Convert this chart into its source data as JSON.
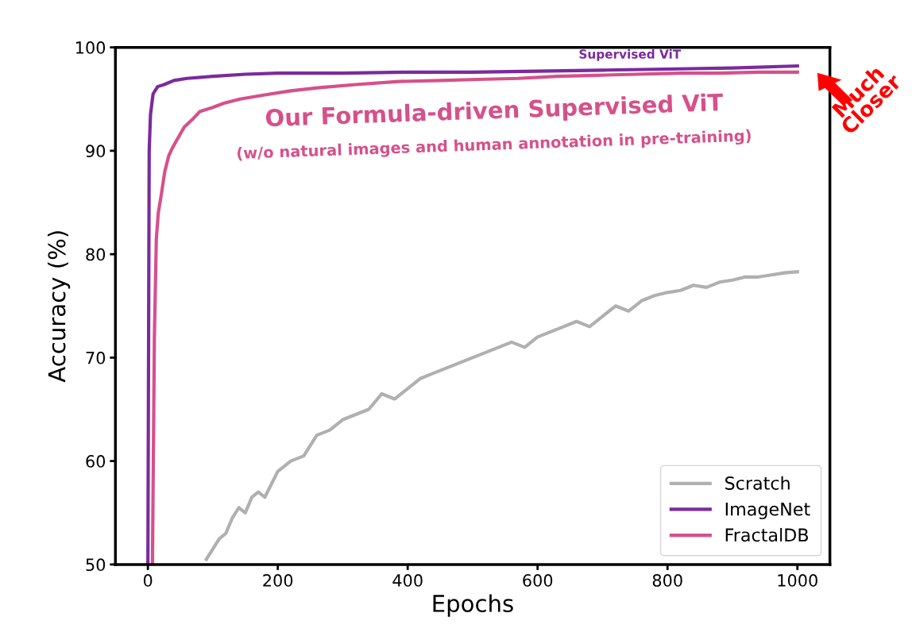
{
  "chart_data": {
    "type": "line",
    "xlabel": "Epochs",
    "ylabel": "Accuracy (%)",
    "xlim": [
      -50,
      1050
    ],
    "ylim": [
      50,
      100
    ],
    "xticks": [
      0,
      200,
      400,
      600,
      800,
      1000
    ],
    "yticks": [
      50,
      60,
      70,
      80,
      90,
      100
    ],
    "grid": false,
    "legend": "bottom right",
    "marker": "none",
    "line_style": "solid",
    "series": [
      {
        "name": "Scratch",
        "color": "#b0b0b0",
        "x": [
          90,
          100,
          110,
          120,
          130,
          140,
          150,
          160,
          170,
          180,
          200,
          220,
          240,
          260,
          280,
          300,
          320,
          340,
          360,
          380,
          400,
          420,
          440,
          460,
          480,
          500,
          520,
          540,
          560,
          580,
          600,
          620,
          640,
          660,
          680,
          700,
          720,
          740,
          760,
          780,
          800,
          820,
          840,
          860,
          880,
          900,
          920,
          940,
          960,
          980,
          1000
        ],
        "values": [
          50.5,
          51.5,
          52.5,
          53,
          54.5,
          55.5,
          55,
          56.5,
          57,
          56.5,
          59,
          60,
          60.5,
          62.5,
          63,
          64,
          64.5,
          65,
          66.5,
          66,
          67,
          68,
          68.5,
          69,
          69.5,
          70,
          70.5,
          71,
          71.5,
          71,
          72,
          72.5,
          73,
          73.5,
          73,
          74,
          75,
          74.5,
          75.5,
          76,
          76.3,
          76.5,
          77,
          76.8,
          77.3,
          77.5,
          77.8,
          77.8,
          78,
          78.2,
          78.3
        ]
      },
      {
        "name": "ImageNet",
        "color": "#7b2a9e",
        "x": [
          0,
          2,
          4,
          8,
          15,
          25,
          40,
          60,
          100,
          150,
          200,
          300,
          400,
          500,
          600,
          700,
          800,
          900,
          1000
        ],
        "values": [
          50,
          90,
          93.5,
          95.5,
          96.2,
          96.4,
          96.8,
          97,
          97.2,
          97.4,
          97.5,
          97.5,
          97.6,
          97.6,
          97.7,
          97.8,
          97.9,
          98,
          98.2
        ]
      },
      {
        "name": "FractalDB",
        "color": "#d6508a",
        "x": [
          7,
          10,
          13,
          16,
          20,
          26,
          32,
          38,
          46,
          56,
          68,
          80,
          100,
          117,
          142,
          180,
          220,
          264,
          320,
          386,
          450,
          508,
          570,
          630,
          690,
          752,
          820,
          880,
          940,
          1000
        ],
        "values": [
          50,
          72,
          81.5,
          84,
          85.5,
          88,
          89.5,
          90.3,
          91.2,
          92.3,
          93,
          93.8,
          94.2,
          94.6,
          95,
          95.4,
          95.8,
          96.1,
          96.4,
          96.7,
          96.8,
          96.9,
          97,
          97.2,
          97.3,
          97.4,
          97.5,
          97.5,
          97.6,
          97.6
        ]
      }
    ],
    "annotations": [
      "Supervised ViT",
      "Our Formula-driven Supervised ViT",
      "(w/o natural images and human annotation in pre-training)",
      "Much Closer"
    ]
  }
}
